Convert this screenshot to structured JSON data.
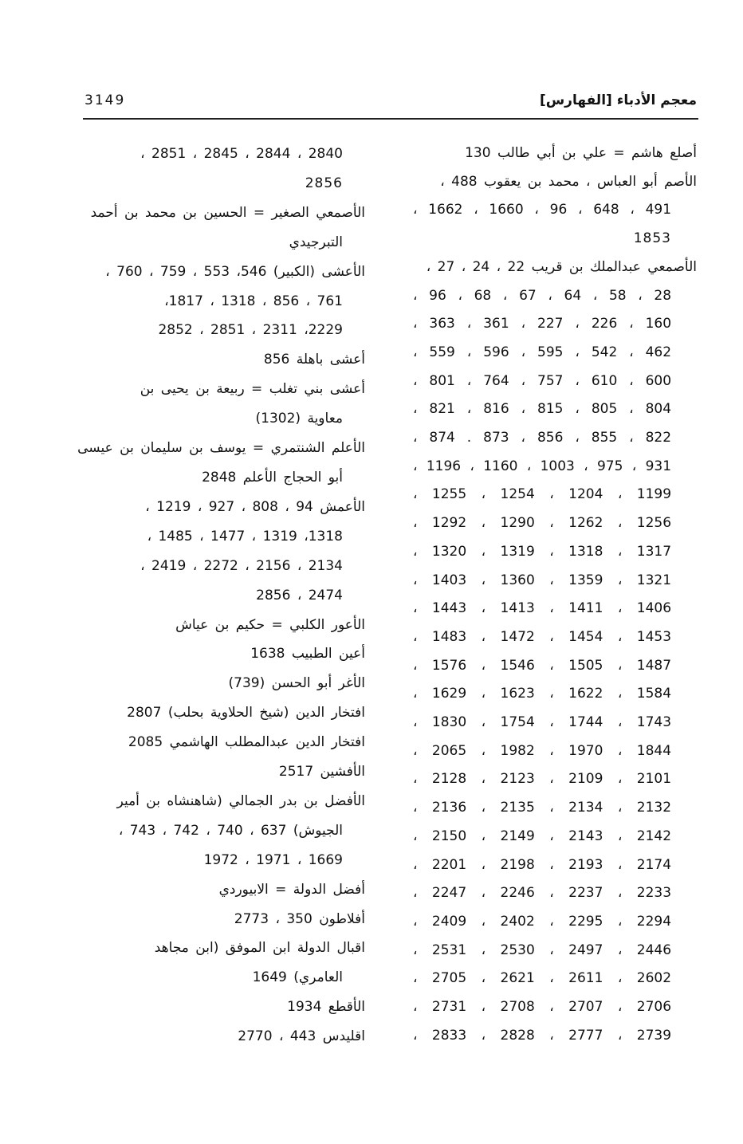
{
  "header": {
    "title": "معجم الأدباء [الفهارس]",
    "page_number": "3149"
  },
  "right_column": [
    {
      "text": "أصلع هاشم = علي بن أبي طالب 130",
      "continuation": false
    },
    {
      "text": "الأصم أبو العباس ، محمد بن يعقوب 488 ،",
      "continuation": false
    },
    {
      "text": "491 ، 648 ، 96 ، 1660 ، 1662 ،",
      "continuation": true
    },
    {
      "text": "1853",
      "continuation": true
    },
    {
      "text": "الأصمعي عبدالملك بن قريب 22 ، 24 ، 27 ،",
      "continuation": false
    },
    {
      "text": "28 ، 58 ، 64 ، 67 ، 68 ، 96 ،",
      "continuation": true
    },
    {
      "text": "160 ، 226 ، 227 ، 361 ، 363 ،",
      "continuation": true
    },
    {
      "text": "462 ، 542 ، 595 ، 596 ، 559 ،",
      "continuation": true
    },
    {
      "text": "600 ، 610 ، 757 ، 764 ، 801 ،",
      "continuation": true
    },
    {
      "text": "804 ، 805 ، 815 ، 816 ، 821 ،",
      "continuation": true
    },
    {
      "text": "822 ، 855 ، 856 ، 873 . 874 ،",
      "continuation": true
    },
    {
      "text": "931 ، 975 ، 1003 ، 1160 ، 1196 ،",
      "continuation": true
    },
    {
      "text": "1199 ، 1204 ، 1254 ، 1255 ،",
      "continuation": true
    },
    {
      "text": "1256 ، 1262 ، 1290 ، 1292 ،",
      "continuation": true
    },
    {
      "text": "1317 ، 1318 ، 1319 ، 1320 ،",
      "continuation": true
    },
    {
      "text": "1321 ، 1359 ، 1360 ، 1403 ،",
      "continuation": true
    },
    {
      "text": "1406 ، 1411 ، 1413 ، 1443 ،",
      "continuation": true
    },
    {
      "text": "1453 ، 1454 ، 1472 ، 1483 ،",
      "continuation": true
    },
    {
      "text": "1487 ، 1505 ، 1546 ، 1576 ،",
      "continuation": true
    },
    {
      "text": "1584 ، 1622 ، 1623 ، 1629 ،",
      "continuation": true
    },
    {
      "text": "1743 ، 1744 ، 1754 ، 1830 ،",
      "continuation": true
    },
    {
      "text": "1844 ، 1970 ، 1982 ، 2065 ،",
      "continuation": true
    },
    {
      "text": "2101 ، 2109 ، 2123 ، 2128 ،",
      "continuation": true
    },
    {
      "text": "2132 ، 2134 ، 2135 ، 2136 ،",
      "continuation": true
    },
    {
      "text": "2142 ، 2143 ، 2149 ، 2150 ،",
      "continuation": true
    },
    {
      "text": "2174 ، 2193 ، 2198 ، 2201 ،",
      "continuation": true
    },
    {
      "text": "2233 ، 2237 ، 2246 ، 2247 ،",
      "continuation": true
    },
    {
      "text": "2294 ، 2295 ، 2402 ، 2409 ،",
      "continuation": true
    },
    {
      "text": "2446 ، 2497 ، 2530 ، 2531 ،",
      "continuation": true
    },
    {
      "text": "2602 ، 2611 ، 2621 ، 2705 ،",
      "continuation": true
    },
    {
      "text": "2706 ، 2707 ، 2708 ، 2731 ،",
      "continuation": true
    },
    {
      "text": "2739 ، 2777 ، 2828 ، 2833 ،",
      "continuation": true
    }
  ],
  "left_column": [
    {
      "text": "2840 ، 2844 ، 2845 ، 2851 ،",
      "continuation": true
    },
    {
      "text": "2856",
      "continuation": true
    },
    {
      "text": "الأصمعي الصغير = الحسين بن محمد بن أحمد",
      "continuation": false
    },
    {
      "text": "التبرجيدي",
      "continuation": true
    },
    {
      "text": "الأعشى (الكبير) 546، 553 ، 759 ، 760 ،",
      "continuation": false
    },
    {
      "text": "761 ، 856 ، 1318 ، 1817،",
      "continuation": true
    },
    {
      "text": "2229، 2311 ، 2851 ، 2852",
      "continuation": true
    },
    {
      "text": "أعشى باهلة 856",
      "continuation": false
    },
    {
      "text": "أعشى بني تغلب = ربيعة بن يحيى بن",
      "continuation": false
    },
    {
      "text": "معاوية (1302)",
      "continuation": true
    },
    {
      "text": "الأعلم الشنتمري = يوسف بن سليمان بن عيسى",
      "continuation": false
    },
    {
      "text": "أبو الحجاج الأعلم 2848",
      "continuation": true
    },
    {
      "text": "الأعمش 94 ، 808 ، 927 ، 1219 ،",
      "continuation": false
    },
    {
      "text": "1318، 1319 ، 1477 ، 1485 ،",
      "continuation": true
    },
    {
      "text": "2134 ، 2156 ، 2272 ، 2419 ،",
      "continuation": true
    },
    {
      "text": "2474 ، 2856",
      "continuation": true
    },
    {
      "text": "الأعور الكلبي = حكيم بن عياش",
      "continuation": false
    },
    {
      "text": "أعين الطبيب 1638",
      "continuation": false
    },
    {
      "text": "الأغر أبو الحسن (739)",
      "continuation": false
    },
    {
      "text": "افتخار الدين (شيخ الحلاوية بحلب) 2807",
      "continuation": false
    },
    {
      "text": "افتخار الدين عبدالمطلب الهاشمي 2085",
      "continuation": false
    },
    {
      "text": "الأفشين 2517",
      "continuation": false
    },
    {
      "text": "الأفضل بن بدر الجمالي (شاهنشاه بن أمير",
      "continuation": false
    },
    {
      "text": "الجيوش) 637 ، 740 ، 742 ، 743 ،",
      "continuation": true
    },
    {
      "text": "1669 ، 1971 ، 1972",
      "continuation": true
    },
    {
      "text": "أفضل الدولة = الابيوردي",
      "continuation": false
    },
    {
      "text": "أفلاطون 350 ، 2773",
      "continuation": false
    },
    {
      "text": "اقبال الدولة ابن الموفق (ابن مجاهد",
      "continuation": false
    },
    {
      "text": "العامري) 1649",
      "continuation": true
    },
    {
      "text": "الأقطع 1934",
      "continuation": false
    },
    {
      "text": "اقليدس 443 ، 2770",
      "continuation": false
    }
  ]
}
